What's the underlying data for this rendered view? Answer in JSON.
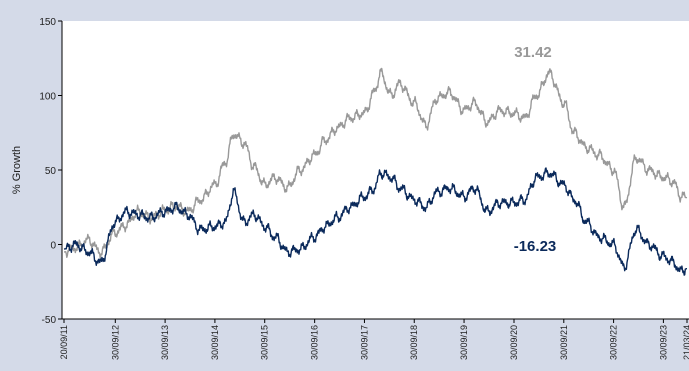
{
  "header": {
    "cut_title": ""
  },
  "colors": {
    "background": "#d4dae8",
    "plot_bg": "#ffffff",
    "series_a": "#999999",
    "series_b": "#0b2a5b"
  },
  "chart_data": {
    "type": "line",
    "title": "",
    "xlabel": "",
    "ylabel": "% Growth",
    "ylim": [
      -50,
      150
    ],
    "yticks": [
      "-50",
      "0",
      "50",
      "100",
      "150"
    ],
    "grid": false,
    "xticks": [
      "20/09/11",
      "30/09/12",
      "30/09/13",
      "30/09/14",
      "30/09/15",
      "30/09/16",
      "30/09/17",
      "30/09/18",
      "30/09/19",
      "30/09/20",
      "30/09/21",
      "30/09/22",
      "30/09/23",
      "21/03/24"
    ],
    "series": [
      {
        "color": "#999999",
        "end_label": "31.42",
        "x": [
          "2011-09-20",
          "2011-12-15",
          "2012-03-15",
          "2012-06-15",
          "2012-09-30",
          "2012-12-15",
          "2013-03-15",
          "2013-06-15",
          "2013-09-30",
          "2013-12-15",
          "2014-03-15",
          "2014-06-15",
          "2014-09-30",
          "2014-12-15",
          "2015-02-15",
          "2015-05-01",
          "2015-07-15",
          "2015-09-30",
          "2015-12-15",
          "2016-03-15",
          "2016-06-15",
          "2016-09-30",
          "2016-12-15",
          "2017-03-15",
          "2017-06-15",
          "2017-09-30",
          "2017-12-15",
          "2018-01-25",
          "2018-04-15",
          "2018-06-15",
          "2018-09-30",
          "2018-12-24",
          "2019-03-15",
          "2019-06-15",
          "2019-09-30",
          "2019-12-15",
          "2020-03-20",
          "2020-06-15",
          "2020-09-30",
          "2020-12-15",
          "2021-03-15",
          "2021-06-15",
          "2021-09-30",
          "2021-12-15",
          "2022-03-15",
          "2022-06-15",
          "2022-09-30",
          "2022-12-15",
          "2023-03-15",
          "2023-06-15",
          "2023-09-30",
          "2023-12-15",
          "2024-01-30",
          "2024-03-21"
        ],
        "values": [
          -5,
          -2,
          3,
          -5,
          8,
          13,
          22,
          18,
          23,
          26,
          22,
          30,
          40,
          55,
          74,
          68,
          52,
          40,
          45,
          38,
          50,
          60,
          70,
          78,
          85,
          88,
          103,
          115,
          100,
          108,
          95,
          80,
          98,
          102,
          90,
          95,
          82,
          90,
          88,
          85,
          100,
          115,
          95,
          75,
          65,
          60,
          50,
          25,
          58,
          50,
          45,
          42,
          33,
          31.42
        ]
      },
      {
        "color": "#0b2a5b",
        "end_label": "-16.23",
        "x": [
          "2011-09-20",
          "2011-12-15",
          "2012-03-15",
          "2012-06-15",
          "2012-09-30",
          "2012-12-15",
          "2013-03-15",
          "2013-06-15",
          "2013-09-30",
          "2013-12-15",
          "2014-03-15",
          "2014-06-15",
          "2014-09-30",
          "2014-12-15",
          "2015-02-15",
          "2015-05-01",
          "2015-07-15",
          "2015-09-30",
          "2015-12-15",
          "2016-03-15",
          "2016-06-15",
          "2016-09-30",
          "2016-12-15",
          "2017-03-15",
          "2017-06-15",
          "2017-09-30",
          "2017-12-15",
          "2018-01-25",
          "2018-04-15",
          "2018-06-15",
          "2018-09-30",
          "2018-12-24",
          "2019-03-15",
          "2019-06-15",
          "2019-09-30",
          "2019-12-15",
          "2020-03-20",
          "2020-06-15",
          "2020-09-30",
          "2020-12-15",
          "2021-03-15",
          "2021-06-15",
          "2021-09-30",
          "2021-12-15",
          "2022-03-15",
          "2022-06-15",
          "2022-09-30",
          "2022-12-15",
          "2023-03-15",
          "2023-06-15",
          "2023-09-30",
          "2023-12-15",
          "2024-01-30",
          "2024-03-21"
        ],
        "values": [
          -3,
          0,
          -5,
          -12,
          15,
          22,
          20,
          18,
          22,
          25,
          20,
          10,
          12,
          15,
          35,
          15,
          20,
          12,
          5,
          -5,
          -3,
          5,
          12,
          18,
          25,
          32,
          38,
          48,
          45,
          38,
          30,
          25,
          35,
          38,
          32,
          38,
          22,
          28,
          28,
          30,
          45,
          48,
          40,
          30,
          15,
          5,
          0,
          -15,
          10,
          0,
          -8,
          -12,
          -18,
          -16.23
        ]
      }
    ]
  }
}
